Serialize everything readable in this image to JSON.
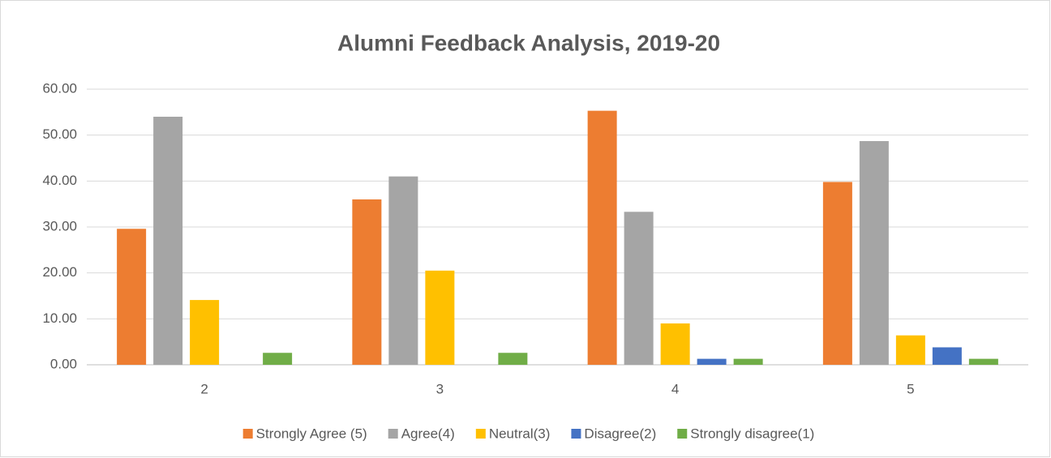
{
  "chart_data": {
    "type": "bar",
    "title": "Alumni  Feedback Analysis, 2019-20",
    "categories": [
      "2",
      "3",
      "4",
      "5"
    ],
    "series": [
      {
        "name": "Strongly Agree (5)",
        "color": "#ed7d31",
        "values": [
          29.6,
          36,
          55.3,
          39.8
        ]
      },
      {
        "name": "Agree(4)",
        "color": "#a5a5a5",
        "values": [
          54,
          41,
          33.3,
          48.7
        ]
      },
      {
        "name": "Neutral(3)",
        "color": "#ffc000",
        "values": [
          14.1,
          20.5,
          9,
          6.4
        ]
      },
      {
        "name": "Disagree(2)",
        "color": "#4472c4",
        "values": [
          0,
          0,
          1.3,
          3.8
        ]
      },
      {
        "name": "Strongly disagree(1)",
        "color": "#70ad47",
        "values": [
          2.6,
          2.6,
          1.3,
          1.3
        ]
      }
    ],
    "ylim": [
      0,
      60
    ],
    "yticks": [
      {
        "value": 0,
        "label": "0.00"
      },
      {
        "value": 10,
        "label": "10.00"
      },
      {
        "value": 20,
        "label": "20.00"
      },
      {
        "value": 30,
        "label": "30.00"
      },
      {
        "value": 40,
        "label": "40.00"
      },
      {
        "value": 50,
        "label": "50.00"
      },
      {
        "value": 60,
        "label": "60.00"
      }
    ],
    "grid": true,
    "legend": "bottom"
  }
}
